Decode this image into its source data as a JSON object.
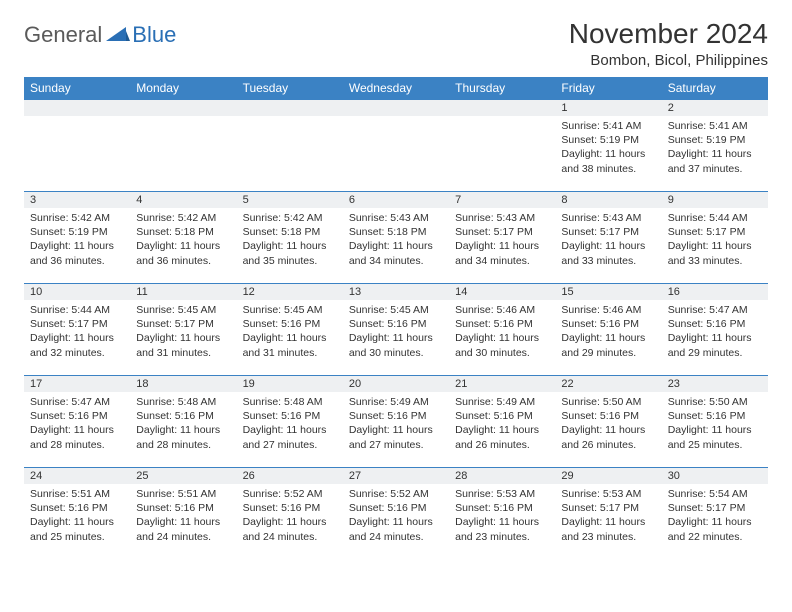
{
  "logo": {
    "text_general": "General",
    "text_blue": "Blue",
    "icon_fill": "#2a6fb5"
  },
  "header": {
    "month_title": "November 2024",
    "location": "Bombon, Bicol, Philippines"
  },
  "styling": {
    "header_bg": "#3b82c4",
    "header_text": "#ffffff",
    "daynum_bg": "#eef0f2",
    "border_color": "#3b82c4",
    "body_text": "#333333",
    "font_family": "Arial",
    "title_fontsize": 28,
    "location_fontsize": 15,
    "dayheader_fontsize": 12,
    "cell_fontsize": 10.5
  },
  "day_headers": [
    "Sunday",
    "Monday",
    "Tuesday",
    "Wednesday",
    "Thursday",
    "Friday",
    "Saturday"
  ],
  "weeks": [
    [
      {
        "num": "",
        "lines": []
      },
      {
        "num": "",
        "lines": []
      },
      {
        "num": "",
        "lines": []
      },
      {
        "num": "",
        "lines": []
      },
      {
        "num": "",
        "lines": []
      },
      {
        "num": "1",
        "lines": [
          "Sunrise: 5:41 AM",
          "Sunset: 5:19 PM",
          "Daylight: 11 hours and 38 minutes."
        ]
      },
      {
        "num": "2",
        "lines": [
          "Sunrise: 5:41 AM",
          "Sunset: 5:19 PM",
          "Daylight: 11 hours and 37 minutes."
        ]
      }
    ],
    [
      {
        "num": "3",
        "lines": [
          "Sunrise: 5:42 AM",
          "Sunset: 5:19 PM",
          "Daylight: 11 hours and 36 minutes."
        ]
      },
      {
        "num": "4",
        "lines": [
          "Sunrise: 5:42 AM",
          "Sunset: 5:18 PM",
          "Daylight: 11 hours and 36 minutes."
        ]
      },
      {
        "num": "5",
        "lines": [
          "Sunrise: 5:42 AM",
          "Sunset: 5:18 PM",
          "Daylight: 11 hours and 35 minutes."
        ]
      },
      {
        "num": "6",
        "lines": [
          "Sunrise: 5:43 AM",
          "Sunset: 5:18 PM",
          "Daylight: 11 hours and 34 minutes."
        ]
      },
      {
        "num": "7",
        "lines": [
          "Sunrise: 5:43 AM",
          "Sunset: 5:17 PM",
          "Daylight: 11 hours and 34 minutes."
        ]
      },
      {
        "num": "8",
        "lines": [
          "Sunrise: 5:43 AM",
          "Sunset: 5:17 PM",
          "Daylight: 11 hours and 33 minutes."
        ]
      },
      {
        "num": "9",
        "lines": [
          "Sunrise: 5:44 AM",
          "Sunset: 5:17 PM",
          "Daylight: 11 hours and 33 minutes."
        ]
      }
    ],
    [
      {
        "num": "10",
        "lines": [
          "Sunrise: 5:44 AM",
          "Sunset: 5:17 PM",
          "Daylight: 11 hours and 32 minutes."
        ]
      },
      {
        "num": "11",
        "lines": [
          "Sunrise: 5:45 AM",
          "Sunset: 5:17 PM",
          "Daylight: 11 hours and 31 minutes."
        ]
      },
      {
        "num": "12",
        "lines": [
          "Sunrise: 5:45 AM",
          "Sunset: 5:16 PM",
          "Daylight: 11 hours and 31 minutes."
        ]
      },
      {
        "num": "13",
        "lines": [
          "Sunrise: 5:45 AM",
          "Sunset: 5:16 PM",
          "Daylight: 11 hours and 30 minutes."
        ]
      },
      {
        "num": "14",
        "lines": [
          "Sunrise: 5:46 AM",
          "Sunset: 5:16 PM",
          "Daylight: 11 hours and 30 minutes."
        ]
      },
      {
        "num": "15",
        "lines": [
          "Sunrise: 5:46 AM",
          "Sunset: 5:16 PM",
          "Daylight: 11 hours and 29 minutes."
        ]
      },
      {
        "num": "16",
        "lines": [
          "Sunrise: 5:47 AM",
          "Sunset: 5:16 PM",
          "Daylight: 11 hours and 29 minutes."
        ]
      }
    ],
    [
      {
        "num": "17",
        "lines": [
          "Sunrise: 5:47 AM",
          "Sunset: 5:16 PM",
          "Daylight: 11 hours and 28 minutes."
        ]
      },
      {
        "num": "18",
        "lines": [
          "Sunrise: 5:48 AM",
          "Sunset: 5:16 PM",
          "Daylight: 11 hours and 28 minutes."
        ]
      },
      {
        "num": "19",
        "lines": [
          "Sunrise: 5:48 AM",
          "Sunset: 5:16 PM",
          "Daylight: 11 hours and 27 minutes."
        ]
      },
      {
        "num": "20",
        "lines": [
          "Sunrise: 5:49 AM",
          "Sunset: 5:16 PM",
          "Daylight: 11 hours and 27 minutes."
        ]
      },
      {
        "num": "21",
        "lines": [
          "Sunrise: 5:49 AM",
          "Sunset: 5:16 PM",
          "Daylight: 11 hours and 26 minutes."
        ]
      },
      {
        "num": "22",
        "lines": [
          "Sunrise: 5:50 AM",
          "Sunset: 5:16 PM",
          "Daylight: 11 hours and 26 minutes."
        ]
      },
      {
        "num": "23",
        "lines": [
          "Sunrise: 5:50 AM",
          "Sunset: 5:16 PM",
          "Daylight: 11 hours and 25 minutes."
        ]
      }
    ],
    [
      {
        "num": "24",
        "lines": [
          "Sunrise: 5:51 AM",
          "Sunset: 5:16 PM",
          "Daylight: 11 hours and 25 minutes."
        ]
      },
      {
        "num": "25",
        "lines": [
          "Sunrise: 5:51 AM",
          "Sunset: 5:16 PM",
          "Daylight: 11 hours and 24 minutes."
        ]
      },
      {
        "num": "26",
        "lines": [
          "Sunrise: 5:52 AM",
          "Sunset: 5:16 PM",
          "Daylight: 11 hours and 24 minutes."
        ]
      },
      {
        "num": "27",
        "lines": [
          "Sunrise: 5:52 AM",
          "Sunset: 5:16 PM",
          "Daylight: 11 hours and 24 minutes."
        ]
      },
      {
        "num": "28",
        "lines": [
          "Sunrise: 5:53 AM",
          "Sunset: 5:16 PM",
          "Daylight: 11 hours and 23 minutes."
        ]
      },
      {
        "num": "29",
        "lines": [
          "Sunrise: 5:53 AM",
          "Sunset: 5:17 PM",
          "Daylight: 11 hours and 23 minutes."
        ]
      },
      {
        "num": "30",
        "lines": [
          "Sunrise: 5:54 AM",
          "Sunset: 5:17 PM",
          "Daylight: 11 hours and 22 minutes."
        ]
      }
    ]
  ]
}
